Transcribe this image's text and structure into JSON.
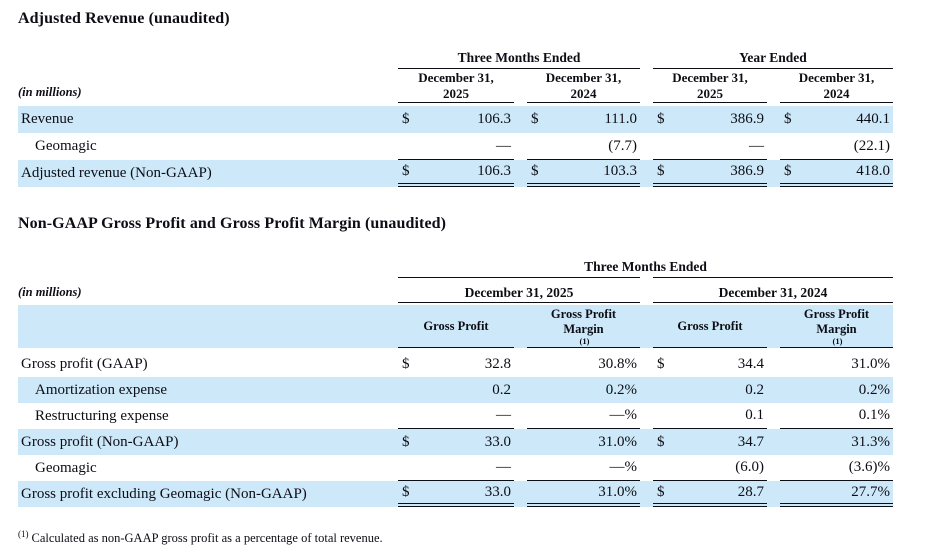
{
  "colors": {
    "row_highlight": "#cde9f9",
    "text": "#0d0d15"
  },
  "table1": {
    "title": "Adjusted Revenue (unaudited)",
    "units": "(in millions)",
    "groups": [
      "Three Months Ended",
      "Year Ended"
    ],
    "cols": [
      {
        "l1": "December 31,",
        "l2": "2025"
      },
      {
        "l1": "December 31,",
        "l2": "2024"
      },
      {
        "l1": "December 31,",
        "l2": "2025"
      },
      {
        "l1": "December 31,",
        "l2": "2024"
      }
    ],
    "rows": [
      {
        "label": "Revenue",
        "cells": [
          {
            "d": "$",
            "v": "106.3"
          },
          {
            "d": "$",
            "v": "111.0"
          },
          {
            "d": "$",
            "v": "386.9"
          },
          {
            "d": "$",
            "v": "440.1"
          }
        ]
      },
      {
        "label": "Geomagic",
        "cells": [
          {
            "d": "",
            "v": "—"
          },
          {
            "d": "",
            "v": "(7.7)"
          },
          {
            "d": "",
            "v": "—"
          },
          {
            "d": "",
            "v": "(22.1)"
          }
        ]
      },
      {
        "label": "Adjusted revenue (Non-GAAP)",
        "cells": [
          {
            "d": "$",
            "v": "106.3"
          },
          {
            "d": "$",
            "v": "103.3"
          },
          {
            "d": "$",
            "v": "386.9"
          },
          {
            "d": "$",
            "v": "418.0"
          }
        ]
      }
    ]
  },
  "table2": {
    "title": "Non-GAAP Gross Profit and Gross Profit Margin (unaudited)",
    "units": "(in millions)",
    "group": "Three Months Ended",
    "dates": [
      "December 31, 2025",
      "December 31, 2024"
    ],
    "subcols": [
      "Gross Profit",
      "Gross Profit Margin",
      "Gross Profit",
      "Gross Profit Margin"
    ],
    "fn_ref": "(1)",
    "rows": [
      {
        "label": "Gross profit (GAAP)",
        "cells": [
          {
            "d": "$",
            "v": "32.8"
          },
          {
            "d": "",
            "v": "30.8%"
          },
          {
            "d": "$",
            "v": "34.4"
          },
          {
            "d": "",
            "v": "31.0%"
          }
        ]
      },
      {
        "label": "Amortization expense",
        "cells": [
          {
            "d": "",
            "v": "0.2"
          },
          {
            "d": "",
            "v": "0.2%"
          },
          {
            "d": "",
            "v": "0.2"
          },
          {
            "d": "",
            "v": "0.2%"
          }
        ]
      },
      {
        "label": "Restructuring expense",
        "cells": [
          {
            "d": "",
            "v": "—"
          },
          {
            "d": "",
            "v": "—%"
          },
          {
            "d": "",
            "v": "0.1"
          },
          {
            "d": "",
            "v": "0.1%"
          }
        ]
      },
      {
        "label": "Gross profit (Non-GAAP)",
        "cells": [
          {
            "d": "$",
            "v": "33.0"
          },
          {
            "d": "",
            "v": "31.0%"
          },
          {
            "d": "$",
            "v": "34.7"
          },
          {
            "d": "",
            "v": "31.3%"
          }
        ]
      },
      {
        "label": "Geomagic",
        "cells": [
          {
            "d": "",
            "v": "—"
          },
          {
            "d": "",
            "v": "—%"
          },
          {
            "d": "",
            "v": "(6.0)"
          },
          {
            "d": "",
            "v": "(3.6)%"
          }
        ]
      },
      {
        "label": "Gross profit excluding Geomagic (Non-GAAP)",
        "cells": [
          {
            "d": "$",
            "v": "33.0"
          },
          {
            "d": "",
            "v": "31.0%"
          },
          {
            "d": "$",
            "v": "28.7"
          },
          {
            "d": "",
            "v": "27.7%"
          }
        ]
      }
    ]
  },
  "footnote": {
    "ref": "(1)",
    "text": "Calculated as non-GAAP gross profit as a percentage of total revenue."
  }
}
